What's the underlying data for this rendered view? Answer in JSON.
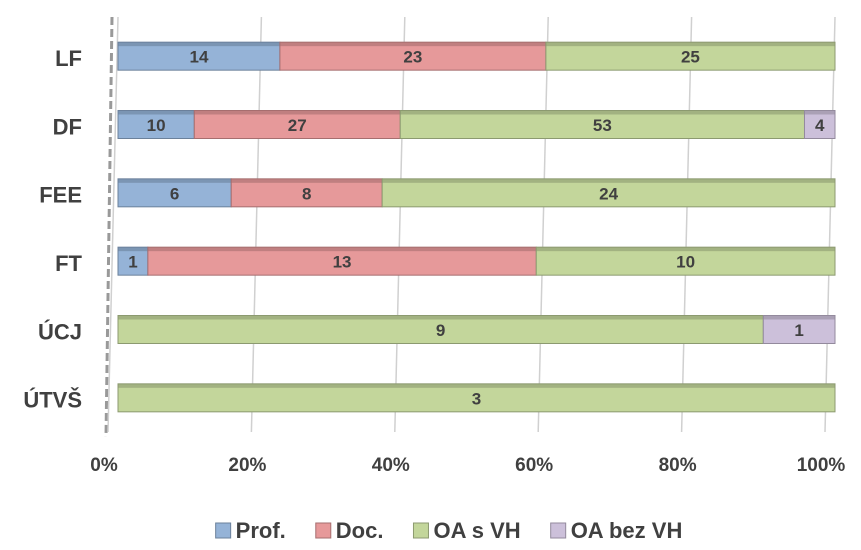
{
  "chart_data": {
    "type": "bar100h",
    "categories": [
      "LF",
      "DF",
      "FEE",
      "FT",
      "ÚCJ",
      "ÚTVŠ"
    ],
    "series": [
      {
        "name": "Prof.",
        "color": "#95b3d7",
        "values": [
          14,
          10,
          6,
          1,
          null,
          null
        ]
      },
      {
        "name": "Doc.",
        "color": "#e6999a",
        "values": [
          23,
          27,
          8,
          13,
          null,
          null
        ]
      },
      {
        "name": "OA s VH",
        "color": "#c3d69b",
        "values": [
          25,
          53,
          24,
          10,
          9,
          3
        ]
      },
      {
        "name": "OA bez VH",
        "color": "#ccc0da",
        "values": [
          null,
          4,
          null,
          null,
          1,
          null
        ]
      }
    ],
    "xlim": [
      0,
      100
    ],
    "xticks": [
      {
        "value": 0,
        "label": "0%"
      },
      {
        "value": 20,
        "label": "20%"
      },
      {
        "value": 40,
        "label": "40%"
      },
      {
        "value": 60,
        "label": "60%"
      },
      {
        "value": 80,
        "label": "80%"
      },
      {
        "value": 100,
        "label": "100%"
      }
    ],
    "grid": true,
    "legend": "bottom"
  }
}
